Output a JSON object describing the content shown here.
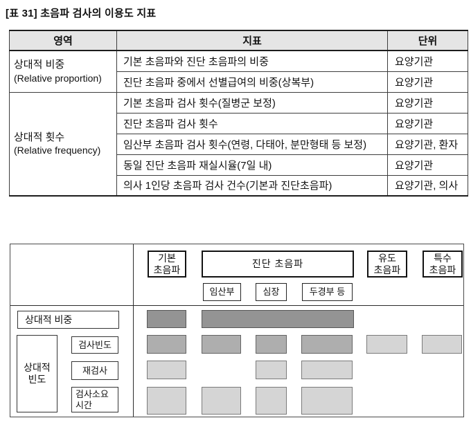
{
  "title": "[표 31] 초음파 검사의 이용도 지표",
  "colors": {
    "page-bg": "#ffffff",
    "header-bg": "#e5e5e5",
    "line": "#3c3c3c",
    "thick": "#1c1c1c",
    "box-border": "#111111"
  },
  "table": {
    "headers": {
      "area": "영역",
      "indicator": "지표",
      "unit": "단위"
    },
    "groups": [
      {
        "name": "상대적 비중",
        "en": "(Relative proportion)"
      },
      {
        "name": "상대적 횟수",
        "en": "(Relative frequency)"
      }
    ],
    "rows": [
      {
        "indicator": "기본 초음파와 진단 초음파의 비중",
        "unit": "요양기관"
      },
      {
        "indicator": "진단 초음파 중에서 선별급여의 비중(상복부)",
        "unit": "요양기관"
      },
      {
        "indicator": "기본 초음파 검사 횟수(질병군 보정)",
        "unit": "요양기관"
      },
      {
        "indicator": "진단 초음파 검사 횟수",
        "unit": "요양기관"
      },
      {
        "indicator": "임산부 초음파 검사 횟수(연령, 다태아, 분만형태 등 보정)",
        "unit": "요양기관, 환자"
      },
      {
        "indicator": "동일 진단 초음파 재실시율(7일 내)",
        "unit": "요양기관"
      },
      {
        "indicator": "의사 1인당 초음파 검사 건수(기본과 진단초음파)",
        "unit": "요양기관, 의사"
      }
    ]
  },
  "diagram": {
    "columns": {
      "basic": "기본\n초음파",
      "diagnostic": "진단 초음파",
      "guided": "유도\n초음파",
      "special": "특수\n초음파"
    },
    "subcolumns": {
      "pregnant": "임산부",
      "heart": "심장",
      "headneck": "두경부 등"
    },
    "row_labels": {
      "relative_weight": "상대적 비중",
      "relative_freq_group": "상대적\n빈도",
      "exam_freq": "검사빈도",
      "reexam": "재검사",
      "exam_time": "검사소요\n시간"
    },
    "shade_styles": {
      "dark": "background:#949494;border:1px solid #565656",
      "medium": "background:#aeaeae;border:1px solid #636363",
      "light": "background:#d5d5d5;border:1px solid #7a7a7a"
    },
    "grid": {
      "columns": [
        "기본 초음파",
        "진단 초음파(전체)",
        "임산부",
        "심장",
        "두경부 등",
        "유도 초음파",
        "특수 초음파"
      ],
      "rows": [
        {
          "label": "상대적 비중",
          "cells": [
            {
              "column": "기본 초음파",
              "shade": "dark"
            },
            {
              "column": "진단 초음파(전체)",
              "shade": "dark"
            }
          ]
        },
        {
          "label": "검사빈도",
          "cells": [
            {
              "column": "기본 초음파",
              "shade": "medium"
            },
            {
              "column": "임산부",
              "shade": "medium"
            },
            {
              "column": "심장",
              "shade": "medium"
            },
            {
              "column": "두경부 등",
              "shade": "medium"
            },
            {
              "column": "유도 초음파",
              "shade": "light"
            },
            {
              "column": "특수 초음파",
              "shade": "light"
            }
          ]
        },
        {
          "label": "재검사",
          "cells": [
            {
              "column": "기본 초음파",
              "shade": "light"
            },
            {
              "column": "심장",
              "shade": "light"
            },
            {
              "column": "두경부 등",
              "shade": "light"
            }
          ]
        },
        {
          "label": "검사소요 시간",
          "cells": [
            {
              "column": "기본 초음파",
              "shade": "light"
            },
            {
              "column": "임산부",
              "shade": "light"
            },
            {
              "column": "심장",
              "shade": "light"
            },
            {
              "column": "두경부 등",
              "shade": "light"
            }
          ]
        }
      ]
    }
  }
}
